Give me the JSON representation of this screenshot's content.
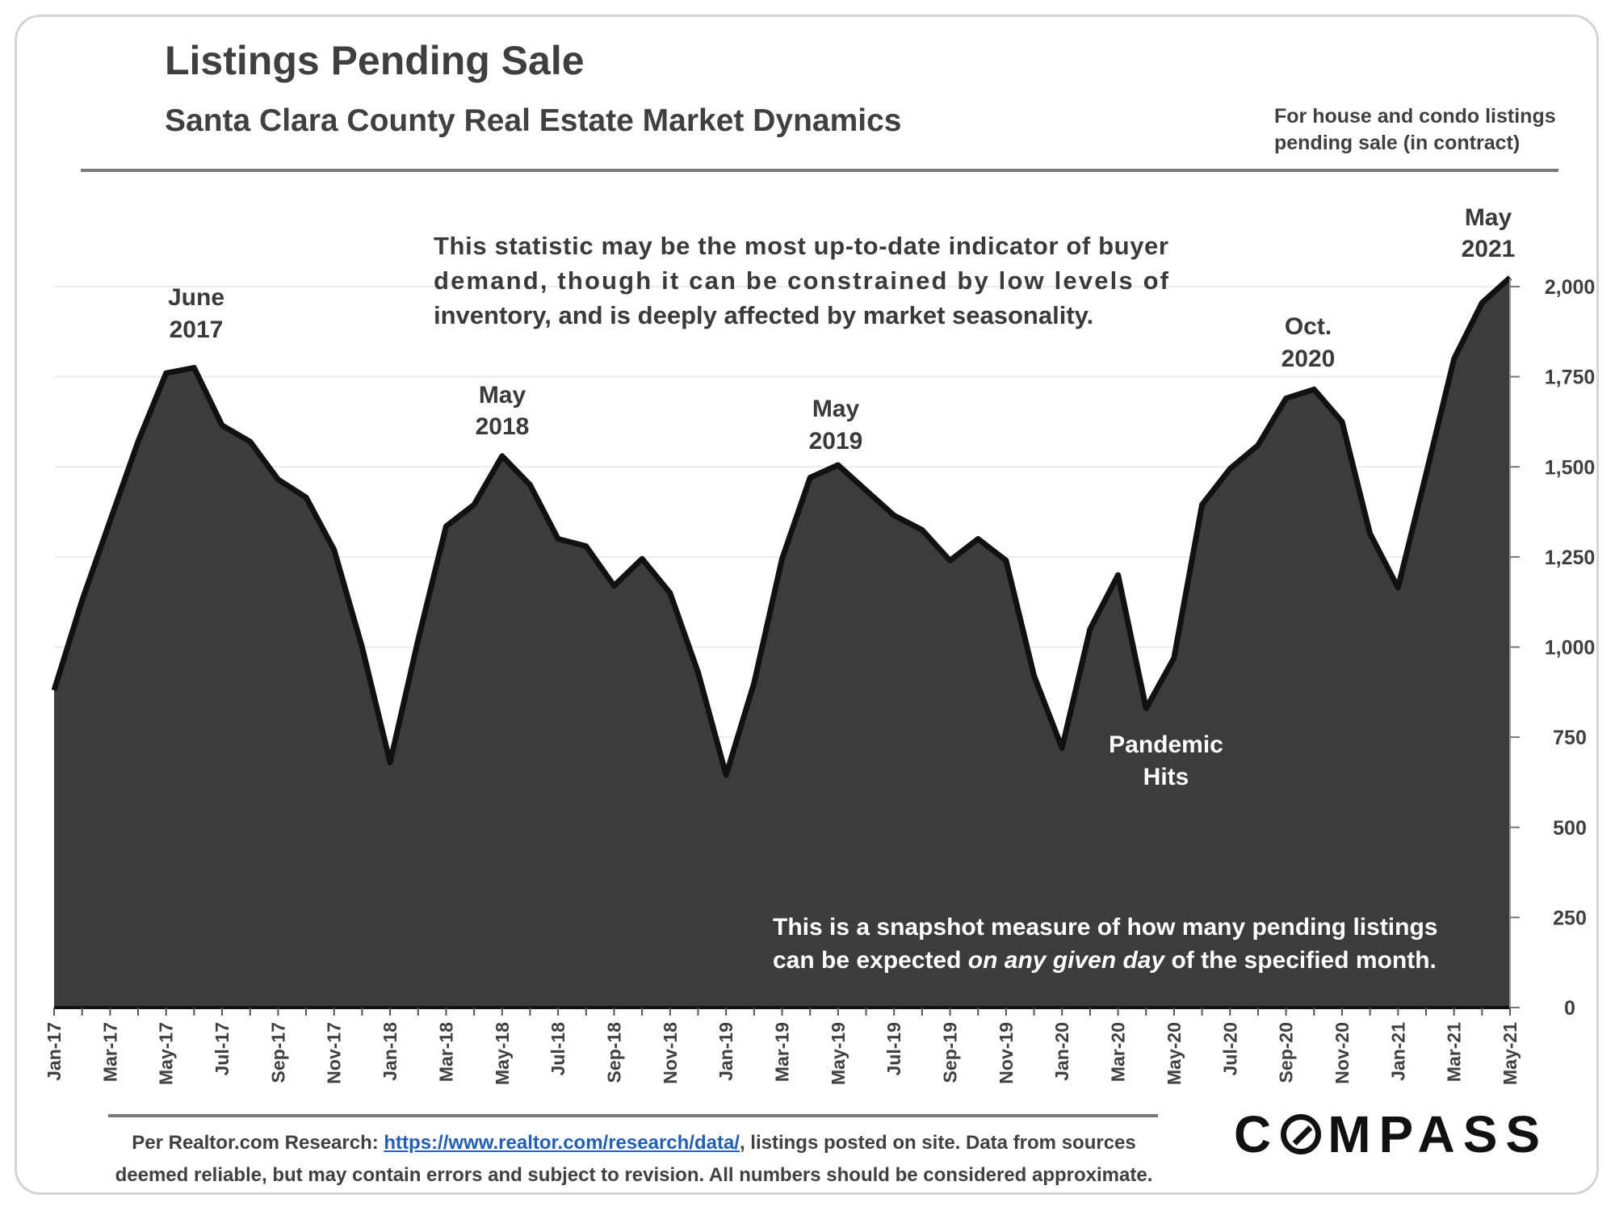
{
  "header": {
    "title": "Listings Pending Sale",
    "subtitle": "Santa Clara County Real Estate Market Dynamics",
    "note_line1": "For house and condo listings",
    "note_line2": "pending sale (in contract)"
  },
  "chart_data": {
    "type": "area",
    "x": [
      "Jan-17",
      "Feb-17",
      "Mar-17",
      "Apr-17",
      "May-17",
      "Jun-17",
      "Jul-17",
      "Aug-17",
      "Sep-17",
      "Oct-17",
      "Nov-17",
      "Dec-17",
      "Jan-18",
      "Feb-18",
      "Mar-18",
      "Apr-18",
      "May-18",
      "Jun-18",
      "Jul-18",
      "Aug-18",
      "Sep-18",
      "Oct-18",
      "Nov-18",
      "Dec-18",
      "Jan-19",
      "Feb-19",
      "Mar-19",
      "Apr-19",
      "May-19",
      "Jun-19",
      "Jul-19",
      "Aug-19",
      "Sep-19",
      "Oct-19",
      "Nov-19",
      "Dec-19",
      "Jan-20",
      "Feb-20",
      "Mar-20",
      "Apr-20",
      "May-20",
      "Jun-20",
      "Jul-20",
      "Aug-20",
      "Sep-20",
      "Oct-20",
      "Nov-20",
      "Dec-20",
      "Jan-21",
      "Feb-21",
      "Mar-21",
      "Apr-21",
      "May-21"
    ],
    "x_tick_labels": [
      "Jan-17",
      "Mar-17",
      "May-17",
      "Jul-17",
      "Sep-17",
      "Nov-17",
      "Jan-18",
      "Mar-18",
      "May-18",
      "Jul-18",
      "Sep-18",
      "Nov-18",
      "Jan-19",
      "Mar-19",
      "May-19",
      "Jul-19",
      "Sep-19",
      "Nov-19",
      "Jan-20",
      "Mar-20",
      "May-20",
      "Jul-20",
      "Sep-20",
      "Nov-20",
      "Jan-21",
      "Mar-21",
      "May-21"
    ],
    "values": [
      880,
      1130,
      1350,
      1570,
      1760,
      1775,
      1615,
      1570,
      1465,
      1415,
      1270,
      1000,
      680,
      1020,
      1335,
      1395,
      1530,
      1450,
      1300,
      1280,
      1170,
      1245,
      1150,
      930,
      645,
      900,
      1245,
      1470,
      1505,
      1435,
      1365,
      1325,
      1240,
      1300,
      1240,
      920,
      720,
      1050,
      1200,
      830,
      970,
      1395,
      1495,
      1560,
      1690,
      1715,
      1625,
      1315,
      1165,
      1480,
      1800,
      1955,
      2025
    ],
    "ylim": [
      0,
      2000
    ],
    "y_ticks": [
      0,
      250,
      500,
      750,
      1000,
      1250,
      1500,
      1750,
      2000
    ],
    "y_tick_labels": [
      "0",
      "250",
      "500",
      "750",
      "1,000",
      "1,250",
      "1,500",
      "1,750",
      "2,000"
    ],
    "y_axis_side": "right",
    "grid": true,
    "fill_color": "#3c3c3c",
    "line_color": "#111111",
    "annotations": {
      "june2017": [
        "June",
        "2017"
      ],
      "may2018": [
        "May",
        "2018"
      ],
      "may2019": [
        "May",
        "2019"
      ],
      "pandemic": [
        "Pandemic",
        "Hits"
      ],
      "oct2020": [
        "Oct.",
        "2020"
      ],
      "may2021": [
        "May",
        "2021"
      ]
    },
    "description_lines": [
      "This statistic may be the most up-to-date indicator of buyer",
      "demand, though it can be constrained by low levels of",
      "inventory, and is deeply affected by market seasonality."
    ],
    "snapshot_line1": "This is a snapshot measure of how many pending listings",
    "snapshot_line2_pre": "can be expected ",
    "snapshot_line2_em": "on any given day",
    "snapshot_line2_post": " of the specified month."
  },
  "footer": {
    "source_pre": "Per Realtor.com Research: ",
    "source_link": "https://www.realtor.com/research/data/",
    "source_post": ", listings posted on site. Data from sources",
    "source_line2": "deemed reliable, but may contain errors and subject to revision. All numbers should be considered approximate.",
    "logo_c": "C",
    "logo_rest": "MPASS"
  }
}
